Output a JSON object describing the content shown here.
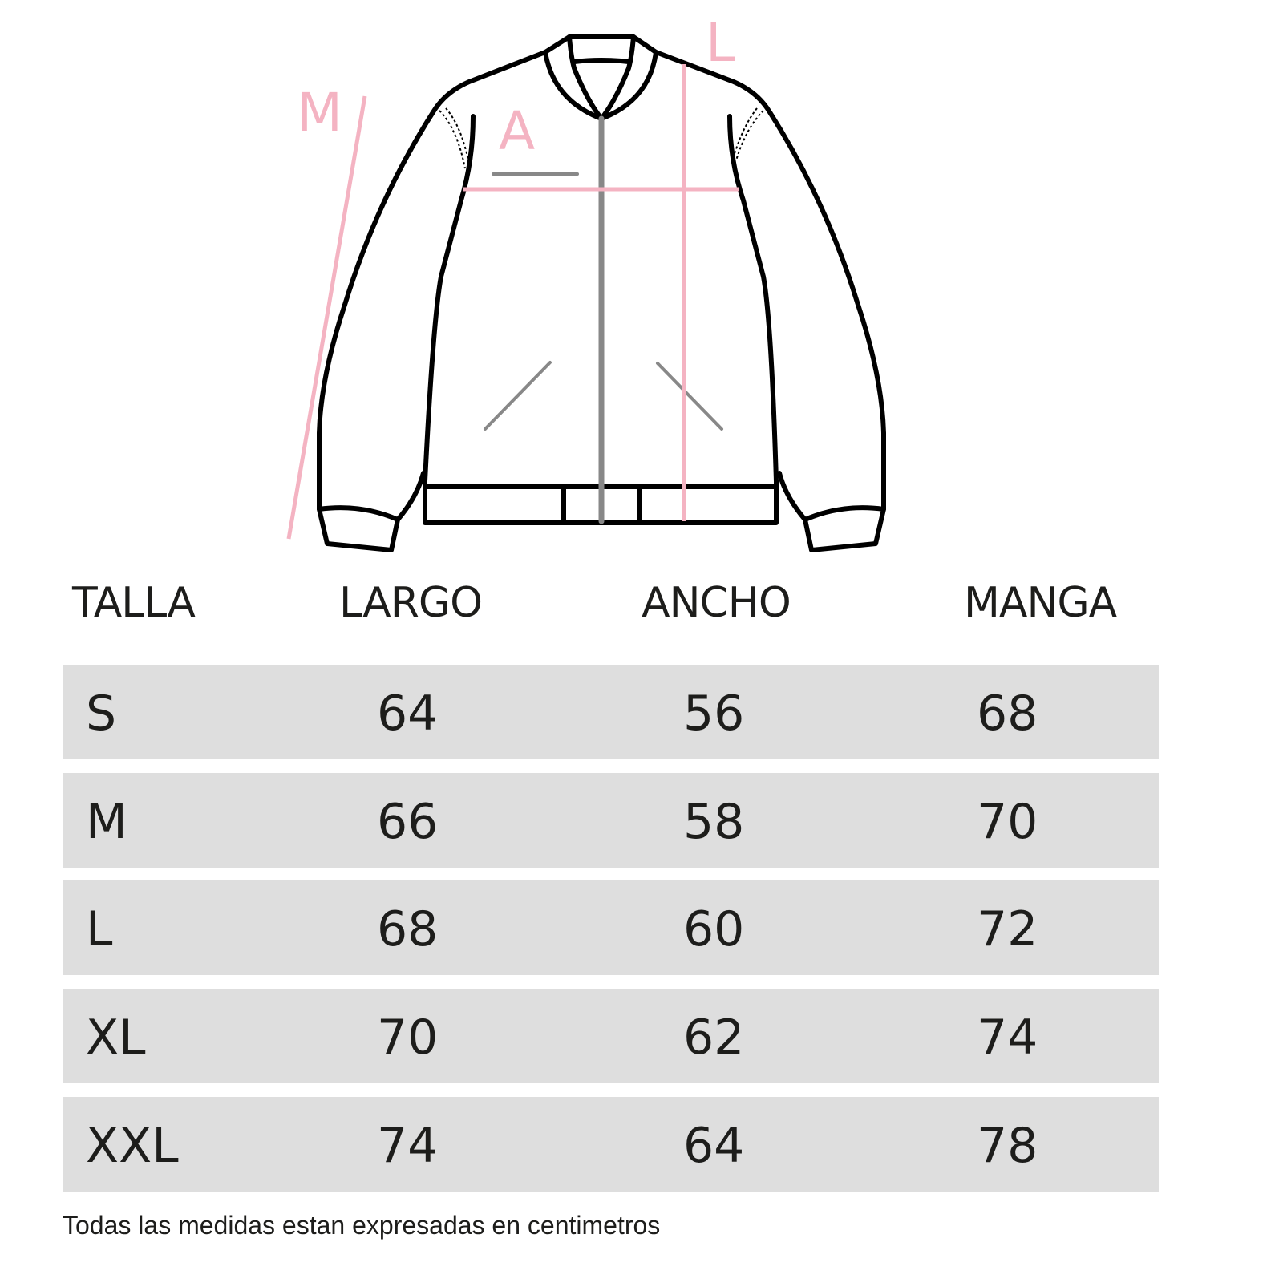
{
  "diagram": {
    "labels": {
      "largo": "L",
      "ancho": "A",
      "manga": "M"
    },
    "colors": {
      "measure_line": "#f4b3c2",
      "outline": "#000000",
      "zipper": "#888888"
    }
  },
  "table": {
    "headers": [
      "TALLA",
      "LARGO",
      "ANCHO",
      "MANGA"
    ],
    "rows": [
      [
        "S",
        "64",
        "56",
        "68"
      ],
      [
        "M",
        "66",
        "58",
        "70"
      ],
      [
        "L",
        "68",
        "60",
        "72"
      ],
      [
        "XL",
        "70",
        "62",
        "74"
      ],
      [
        "XXL",
        "74",
        "64",
        "78"
      ]
    ],
    "row_color": "#dedede"
  },
  "footnote": "Todas las medidas estan expresadas en centimetros"
}
